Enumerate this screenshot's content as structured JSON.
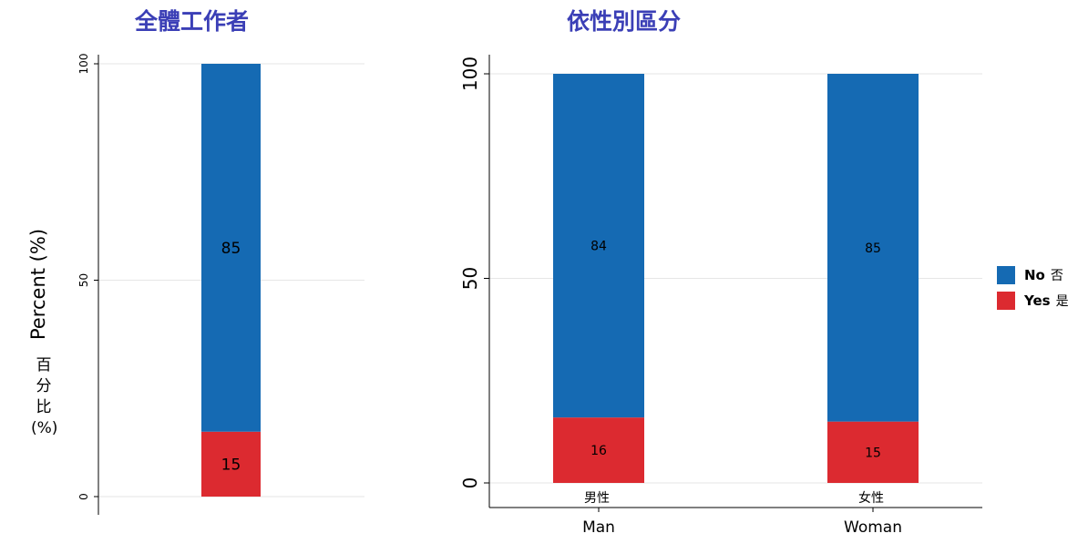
{
  "chart_data": [
    {
      "type": "bar",
      "stacked": true,
      "title": "全體工作者",
      "ylabel": "Percent (%)",
      "ylabel_cn": [
        "百",
        "分",
        "比",
        "(%)"
      ],
      "ylim": [
        0,
        100
      ],
      "yticks": [
        "0",
        "50",
        "100"
      ],
      "categories": [
        ""
      ],
      "series": [
        {
          "name": "Yes 是",
          "values": [
            15
          ],
          "labels": [
            "15"
          ],
          "color": "#dc2a30"
        },
        {
          "name": "No 否",
          "values": [
            85
          ],
          "labels": [
            "85"
          ],
          "color": "#156ab3"
        }
      ],
      "grid": true,
      "legend": "none"
    },
    {
      "type": "bar",
      "stacked": true,
      "title": "依性別區分",
      "ylim": [
        0,
        100
      ],
      "yticks": [
        "0",
        "50",
        "100"
      ],
      "categories": [
        "Man",
        "Woman"
      ],
      "categories_cn": [
        "男性",
        "女性"
      ],
      "series": [
        {
          "name": "Yes 是",
          "values": [
            16,
            15
          ],
          "labels": [
            "16",
            "15"
          ],
          "color": "#dc2a30"
        },
        {
          "name": "No 否",
          "values": [
            84,
            85
          ],
          "labels": [
            "84",
            "85"
          ],
          "color": "#156ab3"
        }
      ],
      "grid": true,
      "legend": "right"
    }
  ],
  "legend": {
    "items": [
      {
        "label": "No",
        "label_cn": "否",
        "color": "#156ab3"
      },
      {
        "label": "Yes",
        "label_cn": "是",
        "color": "#dc2a30"
      }
    ]
  },
  "colors": {
    "title": "#3b3fb6",
    "no": "#156ab3",
    "yes": "#dc2a30",
    "grid": "#e6e6e6"
  }
}
